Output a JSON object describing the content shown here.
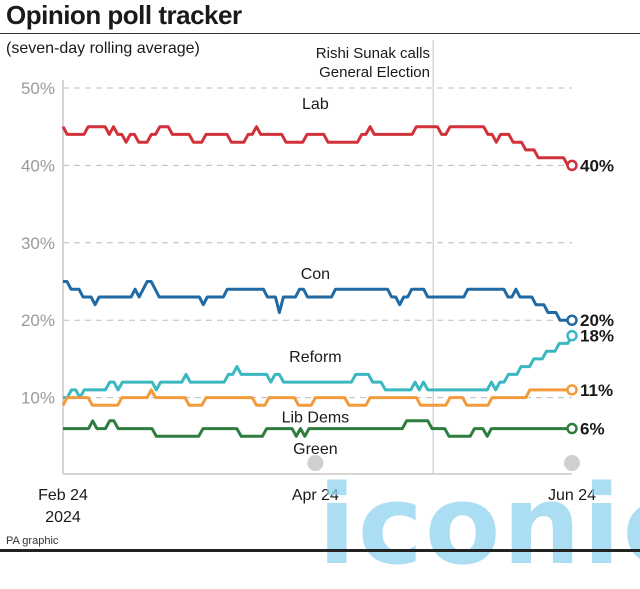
{
  "header": {
    "title": "Opinion poll tracker",
    "subtitle": "(seven-day rolling average)"
  },
  "annotation": {
    "line1": "Rishi Sunak calls",
    "line2": "General Election",
    "date_index": 88
  },
  "footer": {
    "credit": "PA graphic",
    "watermark": "iconic"
  },
  "chart_data": {
    "type": "line",
    "title": "Opinion poll tracker",
    "subtitle": "(seven-day rolling average)",
    "xlabel": "",
    "ylabel": "",
    "ylim": [
      0,
      50
    ],
    "yticks": [
      10,
      20,
      30,
      40,
      50
    ],
    "ytick_labels": [
      "10%",
      "20%",
      "30%",
      "40%",
      "50%"
    ],
    "x_start": "2024-02-24",
    "x_end": "2024-06-24",
    "num_days": 121,
    "xtick_labels": [
      {
        "label": "Feb 24",
        "sublabel": "2024",
        "day": 0
      },
      {
        "label": "Apr 24",
        "sublabel": "",
        "day": 60
      },
      {
        "label": "Jun 24",
        "sublabel": "",
        "day": 121
      }
    ],
    "grid": true,
    "legend": "inline",
    "series": [
      {
        "name": "Lab",
        "color": "#d0313a",
        "end_label": "40%",
        "label_day": 60,
        "label_value": 47.3,
        "values": [
          45,
          44,
          44,
          44,
          44,
          44,
          45,
          45,
          45,
          45,
          45,
          44,
          45,
          44,
          44,
          43,
          44,
          44,
          43,
          43,
          43,
          44,
          44,
          45,
          45,
          45,
          44,
          44,
          44,
          44,
          44,
          43,
          43,
          43,
          44,
          44,
          44,
          44,
          44,
          44,
          43,
          43,
          43,
          43,
          44,
          44,
          45,
          44,
          44,
          44,
          44,
          44,
          44,
          43,
          43,
          43,
          43,
          43,
          44,
          44,
          44,
          44,
          44,
          43,
          43,
          43,
          43,
          43,
          43,
          43,
          43,
          44,
          44,
          45,
          44,
          44,
          44,
          44,
          44,
          44,
          44,
          44,
          44,
          44,
          45,
          45,
          45,
          45,
          45,
          45,
          44,
          44,
          45,
          45,
          45,
          45,
          45,
          45,
          45,
          45,
          45,
          44,
          44,
          43,
          44,
          44,
          44,
          43,
          43,
          43,
          42,
          42,
          42,
          41,
          41,
          41,
          41,
          41,
          41,
          41,
          40,
          40
        ]
      },
      {
        "name": "Con",
        "color": "#1f6aa5",
        "end_label": "20%",
        "label_day": 60,
        "label_value": 25.3,
        "values": [
          25,
          25,
          24,
          24,
          24,
          23,
          23,
          23,
          22,
          23,
          23,
          23,
          23,
          23,
          23,
          23,
          23,
          23,
          24,
          23,
          24,
          25,
          25,
          24,
          23,
          23,
          23,
          23,
          23,
          23,
          23,
          23,
          23,
          23,
          23,
          22,
          23,
          23,
          23,
          23,
          23,
          24,
          24,
          24,
          24,
          24,
          24,
          24,
          24,
          24,
          24,
          23,
          23,
          23,
          21,
          23,
          23,
          23,
          23,
          24,
          24,
          23,
          23,
          23,
          23,
          23,
          23,
          23,
          24,
          24,
          24,
          24,
          24,
          24,
          24,
          24,
          24,
          24,
          24,
          24,
          24,
          24,
          23,
          23,
          22,
          23,
          23,
          24,
          24,
          24,
          24,
          23,
          23,
          23,
          23,
          23,
          23,
          23,
          23,
          23,
          23,
          24,
          24,
          24,
          24,
          24,
          24,
          24,
          24,
          24,
          24,
          23,
          23,
          24,
          23,
          23,
          23,
          23,
          22,
          22,
          22,
          21,
          21,
          21,
          20,
          20,
          20,
          20
        ]
      },
      {
        "name": "Reform",
        "color": "#3bb8bf",
        "end_label": "18%",
        "label_day": 60,
        "label_value": 14.6,
        "values": [
          10,
          10,
          11,
          11,
          10,
          11,
          11,
          11,
          11,
          11,
          11,
          12,
          12,
          11,
          12,
          12,
          12,
          12,
          12,
          12,
          12,
          12,
          11,
          12,
          12,
          12,
          12,
          12,
          12,
          13,
          12,
          12,
          12,
          12,
          12,
          12,
          12,
          12,
          12,
          13,
          13,
          14,
          13,
          13,
          13,
          13,
          13,
          13,
          13,
          12,
          13,
          13,
          12,
          12,
          12,
          12,
          12,
          12,
          12,
          12,
          12,
          12,
          12,
          12,
          12,
          12,
          12,
          12,
          12,
          13,
          13,
          13,
          13,
          12,
          12,
          12,
          11,
          11,
          11,
          11,
          11,
          11,
          11,
          12,
          11,
          12,
          11,
          11,
          11,
          11,
          11,
          11,
          11,
          11,
          11,
          11,
          11,
          11,
          11,
          11,
          11,
          12,
          11,
          12,
          12,
          13,
          13,
          13,
          14,
          14,
          14,
          15,
          15,
          15,
          16,
          16,
          16,
          17,
          17,
          17,
          18
        ]
      },
      {
        "name": "Lib Dems",
        "color": "#f29a3c",
        "end_label": "11%",
        "label_day": 60,
        "label_value": 6.8,
        "values": [
          9,
          10,
          10,
          10,
          10,
          10,
          10,
          9,
          9,
          9,
          9,
          9,
          9,
          9,
          10,
          10,
          10,
          10,
          10,
          10,
          10,
          11,
          10,
          10,
          10,
          10,
          10,
          10,
          10,
          10,
          9,
          9,
          9,
          9,
          10,
          10,
          10,
          10,
          10,
          10,
          10,
          10,
          10,
          10,
          10,
          10,
          9,
          9,
          9,
          10,
          10,
          10,
          10,
          10,
          10,
          10,
          9,
          9,
          9,
          9,
          10,
          10,
          10,
          10,
          10,
          10,
          10,
          10,
          9,
          9,
          9,
          9,
          9,
          10,
          10,
          10,
          10,
          10,
          10,
          10,
          10,
          10,
          10,
          10,
          10,
          9,
          9,
          9,
          9,
          9,
          9,
          9,
          10,
          10,
          10,
          10,
          9,
          9,
          9,
          9,
          9,
          9,
          10,
          10,
          10,
          10,
          10,
          10,
          10,
          10,
          10,
          11,
          11,
          11,
          11,
          11,
          11,
          11,
          11,
          11,
          11,
          11
        ]
      },
      {
        "name": "Green",
        "color": "#2e7d3f",
        "end_label": "6%",
        "label_day": 60,
        "label_value": 2.7,
        "values": [
          6,
          6,
          6,
          6,
          6,
          6,
          6,
          7,
          6,
          6,
          6,
          7,
          7,
          6,
          6,
          6,
          6,
          6,
          6,
          6,
          6,
          6,
          5,
          5,
          5,
          5,
          5,
          5,
          5,
          5,
          5,
          5,
          5,
          6,
          6,
          6,
          6,
          6,
          6,
          6,
          6,
          6,
          5,
          5,
          5,
          5,
          5,
          5,
          6,
          6,
          6,
          6,
          6,
          6,
          6,
          5,
          6,
          5,
          6,
          6,
          6,
          6,
          6,
          6,
          6,
          6,
          6,
          6,
          6,
          6,
          6,
          6,
          6,
          6,
          6,
          6,
          6,
          6,
          6,
          6,
          6,
          7,
          7,
          7,
          7,
          7,
          7,
          6,
          6,
          6,
          6,
          5,
          5,
          5,
          5,
          5,
          5,
          6,
          6,
          6,
          5,
          6,
          6,
          6,
          6,
          6,
          6,
          6,
          6,
          6,
          6,
          6,
          6,
          6,
          6,
          6,
          6,
          6,
          6,
          6,
          6
        ]
      }
    ]
  }
}
